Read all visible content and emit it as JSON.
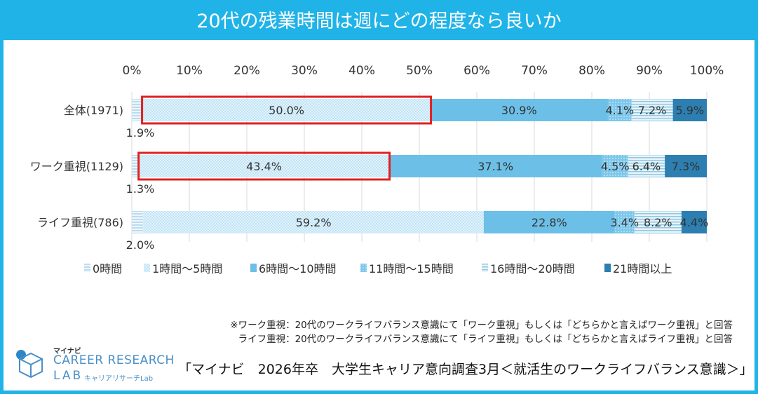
{
  "title": "20代の残業時間は週にどの程度なら良いか",
  "chart_data": {
    "type": "bar",
    "orientation": "horizontal",
    "stacked": true,
    "percent": true,
    "categories": [
      "全体(1971)",
      "ワーク重視(1129)",
      "ライフ重視(786)"
    ],
    "series": [
      {
        "name": "0時間",
        "values": [
          1.9,
          1.3,
          2.0
        ],
        "labels": [
          "1.9%",
          "1.3%",
          "2.0%"
        ]
      },
      {
        "name": "1時間～5時間",
        "values": [
          50.0,
          43.4,
          59.2
        ],
        "labels": [
          "50.0%",
          "43.4%",
          "59.2%"
        ]
      },
      {
        "name": "6時間～10時間",
        "values": [
          30.9,
          37.1,
          22.8
        ],
        "labels": [
          "30.9%",
          "37.1%",
          "22.8%"
        ]
      },
      {
        "name": "11時間～15時間",
        "values": [
          4.1,
          4.5,
          3.4
        ],
        "labels": [
          "4.1%",
          "4.5%",
          "3.4%"
        ]
      },
      {
        "name": "16時間～20時間",
        "values": [
          7.2,
          6.4,
          8.2
        ],
        "labels": [
          "7.2%",
          "6.4%",
          "8.2%"
        ]
      },
      {
        "name": "21時間以上",
        "values": [
          5.9,
          7.3,
          4.4
        ],
        "labels": [
          "5.9%",
          "7.3%",
          "4.4%"
        ]
      }
    ],
    "xticks": [
      "0%",
      "10%",
      "20%",
      "30%",
      "40%",
      "50%",
      "60%",
      "70%",
      "80%",
      "90%",
      "100%"
    ],
    "xlim": [
      0,
      100
    ],
    "gridlines": true,
    "legend_position": "bottom",
    "highlight": {
      "series": "1時間～5時間",
      "categories": [
        "全体(1971)",
        "ワーク重視(1129)"
      ],
      "color": "#e02020"
    }
  },
  "colors": {
    "title_bg": "#1fb3e8",
    "series": [
      "#d4eaf6",
      "#a8d9f2",
      "#6cc0e8",
      "#7cc7ec",
      "#d6ebf5",
      "#2c7fb0"
    ]
  },
  "notes": [
    "※ワーク重視：20代のワークライフバランス意識にて「ワーク重視」もしくは「どちらかと言えばワーク重視」と回答",
    "ライフ重視：20代のワークライフバランス意識にて「ライフ重視」もしくは「どちらかと言えばライフ重視」と回答"
  ],
  "source": "「マイナビ　2026年卒　大学生キャリア意向調査3月＜就活生のワークライフバランス意識＞」",
  "logo": {
    "brand": "マイナビ",
    "line1": "CAREER RESEARCH",
    "line2": "LAB",
    "sub": "キャリアリサーチLab"
  }
}
